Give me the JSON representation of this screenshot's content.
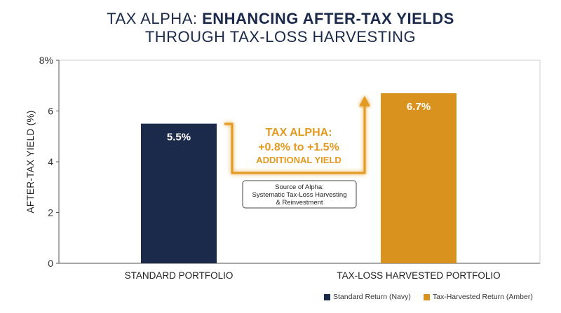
{
  "chart_data": {
    "type": "bar",
    "title_part1": "TAX ALPHA: ",
    "title_part2": "ENHANCING AFTER-TAX YIELDS",
    "title_line2": "THROUGH TAX-LOSS HARVESTING",
    "ylabel": "AFTER-TAX YIELD (%)",
    "xlabel": "",
    "ylim": [
      0,
      8
    ],
    "yticks": [
      {
        "value": 0,
        "label": "0"
      },
      {
        "value": 2,
        "label": "2"
      },
      {
        "value": 4,
        "label": "4"
      },
      {
        "value": 6,
        "label": "6"
      },
      {
        "value": 8,
        "label": "8%"
      }
    ],
    "categories": [
      "STANDARD PORTFOLIO",
      "TAX-LOSS HARVESTED PORTFOLIO"
    ],
    "values": [
      5.5,
      6.7
    ],
    "value_labels": [
      "5.5%",
      "6.7%"
    ],
    "colors": [
      "#1b2a4a",
      "#d9921e"
    ],
    "grid": false,
    "annotation": {
      "line1": "TAX ALPHA:",
      "line2": "+0.8% to +1.5%",
      "line3": "ADDITIONAL YIELD",
      "color": "#e39a21"
    },
    "source_box": {
      "line1": "Source of Alpha:",
      "line2": "Systematic Tax-Loss Harvesting",
      "line3": "& Reinvestment"
    },
    "legend_position": "bottom-right",
    "legend": [
      {
        "label": "Standard Return (Navy)",
        "color": "#1b2a4a"
      },
      {
        "label": "Tax-Harvested Return (Amber)",
        "color": "#d9921e"
      }
    ]
  }
}
